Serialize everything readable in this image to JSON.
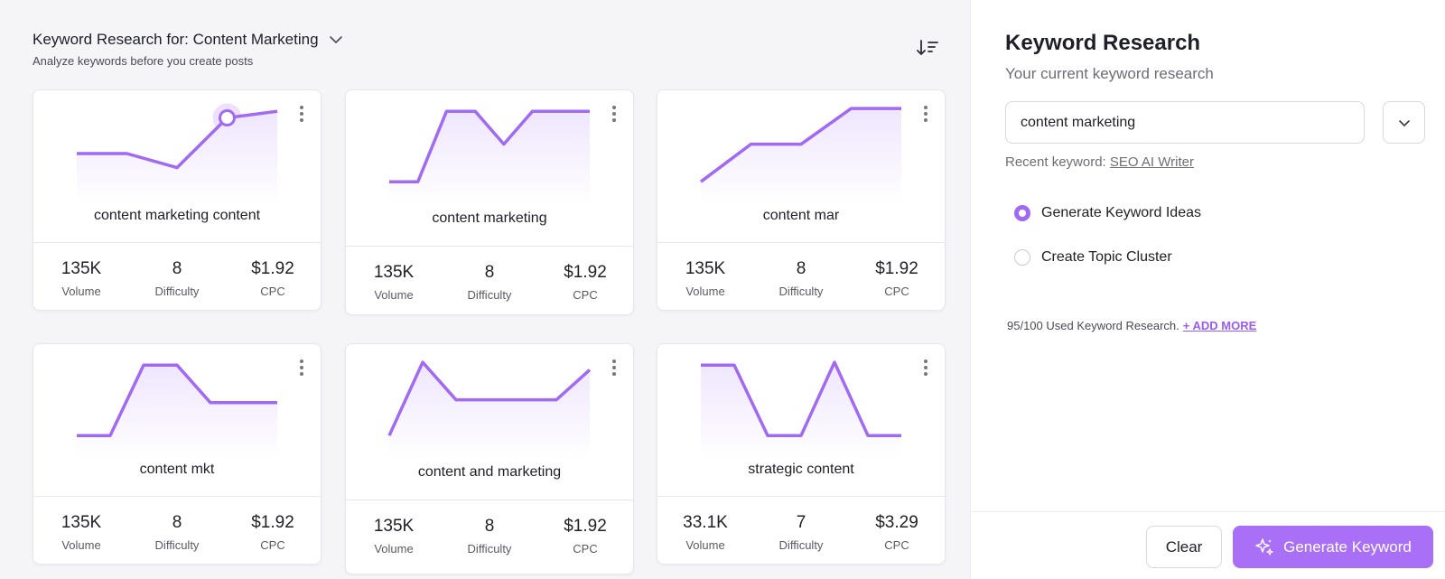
{
  "header": {
    "title": "Keyword Research for: Content Marketing",
    "subtitle": "Analyze keywords before you create posts",
    "chevron_icon": "chevron-down-icon",
    "sort_icon": "sort-descending-icon"
  },
  "cards": [
    {
      "keyword": "content marketing content",
      "volume": "135K",
      "difficulty": "8",
      "cpc": "$1.92",
      "trend": [
        0.5,
        0.5,
        0.35,
        0.88,
        0.95
      ],
      "highlight_last": true
    },
    {
      "keyword": "content marketing",
      "volume": "135K",
      "difficulty": "8",
      "cpc": "$1.92",
      "trend": [
        0.2,
        0.2,
        0.95,
        0.95,
        0.6,
        0.95,
        0.95,
        0.95
      ]
    },
    {
      "keyword": "content mar",
      "volume": "135K",
      "difficulty": "8",
      "cpc": "$1.92",
      "trend": [
        0.2,
        0.6,
        0.6,
        0.98,
        0.98
      ]
    },
    {
      "keyword": "content mkt",
      "volume": "135K",
      "difficulty": "8",
      "cpc": "$1.92",
      "trend": [
        0.2,
        0.2,
        0.95,
        0.95,
        0.55,
        0.55,
        0.55
      ]
    },
    {
      "keyword": "content and marketing",
      "volume": "135K",
      "difficulty": "8",
      "cpc": "$1.92",
      "trend": [
        0.2,
        0.98,
        0.58,
        0.58,
        0.58,
        0.58,
        0.9
      ]
    },
    {
      "keyword": "strategic content",
      "volume": "33.1K",
      "difficulty": "7",
      "cpc": "$3.29",
      "trend": [
        0.95,
        0.95,
        0.2,
        0.2,
        0.98,
        0.2,
        0.2
      ]
    }
  ],
  "stat_labels": {
    "volume": "Volume",
    "difficulty": "Difficulty",
    "cpc": "CPC"
  },
  "colors": {
    "accent": "#9a5cf6",
    "line": "#a06af5",
    "fill": "#efe6fd"
  },
  "panel": {
    "title": "Keyword Research",
    "subtitle": "Your current keyword research",
    "input_value": "content marketing",
    "recent_label": "Recent keyword:",
    "recent_link": "SEO AI Writer",
    "options": [
      {
        "label": "Generate Keyword Ideas",
        "selected": true
      },
      {
        "label": "Create Topic Cluster",
        "selected": false
      }
    ],
    "usage_text": "95/100 Used Keyword Research.",
    "add_more": "+ ADD MORE",
    "clear_label": "Clear",
    "generate_label": "Generate Keyword",
    "generate_icon": "sparkle-icon"
  }
}
